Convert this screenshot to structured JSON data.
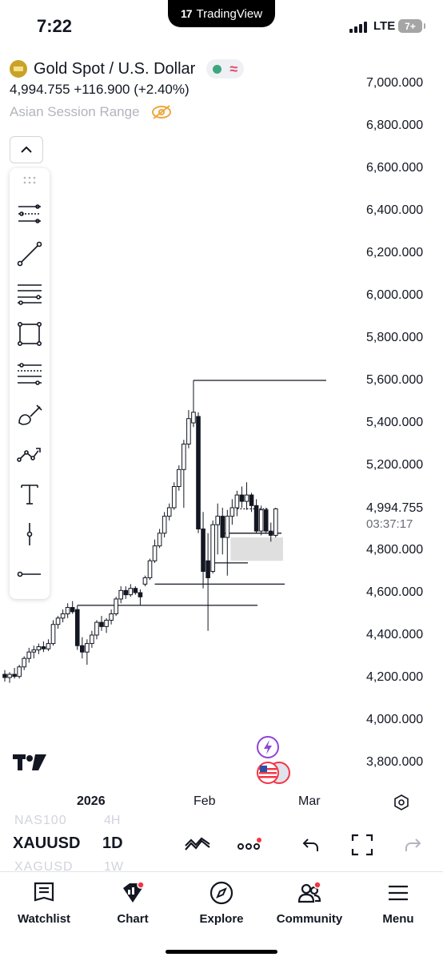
{
  "status_bar": {
    "time": "7:22",
    "app_pill": "TradingView",
    "network": "LTE",
    "battery": "7+"
  },
  "symbol": {
    "title": "Gold Spot / U.S. Dollar",
    "icon": "gold-bar-icon",
    "price": "4,994.755",
    "change": "+116.900 (+2.40%)",
    "status_dot_color": "#3ea67f",
    "status_wave_color": "#e0456b"
  },
  "indicator": {
    "name": "Asian Session Range",
    "visibility_icon": "eye-off-icon"
  },
  "toolbar": {
    "tools": [
      "cross-line-icon",
      "trend-line-icon",
      "parallel-channel-icon",
      "rectangle-icon",
      "fib-retracement-icon",
      "brush-icon",
      "path-icon",
      "text-icon",
      "vertical-line-icon",
      "horizontal-ray-icon"
    ]
  },
  "price_axis": {
    "labels": [
      "7,000.000",
      "6,800.000",
      "6,600.000",
      "6,400.000",
      "6,200.000",
      "6,000.000",
      "5,800.000",
      "5,600.000",
      "5,400.000",
      "5,200.000",
      "4,800.000",
      "4,600.000",
      "4,400.000",
      "4,200.000",
      "4,000.000",
      "3,800.000"
    ],
    "current_price": "4,994.755",
    "countdown": "03:37:17"
  },
  "time_axis": {
    "labels": [
      "2026",
      "Feb",
      "Mar"
    ]
  },
  "chart_data": {
    "type": "candlestick",
    "symbol": "XAUUSD",
    "interval": "1D",
    "ylim": [
      3700,
      7100
    ],
    "x_ticks": [
      "2026",
      "Feb",
      "Mar"
    ],
    "candles": [
      {
        "o": 4215,
        "h": 4235,
        "l": 4180,
        "c": 4200
      },
      {
        "o": 4200,
        "h": 4225,
        "l": 4175,
        "c": 4215
      },
      {
        "o": 4215,
        "h": 4245,
        "l": 4195,
        "c": 4205
      },
      {
        "o": 4205,
        "h": 4260,
        "l": 4195,
        "c": 4250
      },
      {
        "o": 4250,
        "h": 4300,
        "l": 4235,
        "c": 4290
      },
      {
        "o": 4290,
        "h": 4340,
        "l": 4270,
        "c": 4320
      },
      {
        "o": 4320,
        "h": 4350,
        "l": 4290,
        "c": 4330
      },
      {
        "o": 4330,
        "h": 4360,
        "l": 4310,
        "c": 4345
      },
      {
        "o": 4345,
        "h": 4370,
        "l": 4320,
        "c": 4335
      },
      {
        "o": 4335,
        "h": 4380,
        "l": 4325,
        "c": 4360
      },
      {
        "o": 4360,
        "h": 4470,
        "l": 4350,
        "c": 4450
      },
      {
        "o": 4450,
        "h": 4490,
        "l": 4430,
        "c": 4480
      },
      {
        "o": 4480,
        "h": 4520,
        "l": 4460,
        "c": 4500
      },
      {
        "o": 4500,
        "h": 4550,
        "l": 4480,
        "c": 4530
      },
      {
        "o": 4530,
        "h": 4560,
        "l": 4500,
        "c": 4510
      },
      {
        "o": 4520,
        "h": 4540,
        "l": 4330,
        "c": 4350
      },
      {
        "o": 4350,
        "h": 4390,
        "l": 4290,
        "c": 4320
      },
      {
        "o": 4320,
        "h": 4380,
        "l": 4260,
        "c": 4360
      },
      {
        "o": 4360,
        "h": 4420,
        "l": 4340,
        "c": 4400
      },
      {
        "o": 4400,
        "h": 4470,
        "l": 4380,
        "c": 4460
      },
      {
        "o": 4460,
        "h": 4490,
        "l": 4420,
        "c": 4440
      },
      {
        "o": 4440,
        "h": 4480,
        "l": 4410,
        "c": 4470
      },
      {
        "o": 4470,
        "h": 4520,
        "l": 4450,
        "c": 4500
      },
      {
        "o": 4500,
        "h": 4580,
        "l": 4490,
        "c": 4570
      },
      {
        "o": 4570,
        "h": 4630,
        "l": 4550,
        "c": 4610
      },
      {
        "o": 4610,
        "h": 4630,
        "l": 4570,
        "c": 4590
      },
      {
        "o": 4590,
        "h": 4640,
        "l": 4580,
        "c": 4620
      },
      {
        "o": 4620,
        "h": 4630,
        "l": 4590,
        "c": 4600
      },
      {
        "o": 4600,
        "h": 4615,
        "l": 4540,
        "c": 4580
      },
      {
        "o": 4640,
        "h": 4680,
        "l": 4630,
        "c": 4670
      },
      {
        "o": 4670,
        "h": 4760,
        "l": 4660,
        "c": 4750
      },
      {
        "o": 4750,
        "h": 4850,
        "l": 4740,
        "c": 4820
      },
      {
        "o": 4820,
        "h": 4900,
        "l": 4810,
        "c": 4880
      },
      {
        "o": 4880,
        "h": 4980,
        "l": 4860,
        "c": 4960
      },
      {
        "o": 4960,
        "h": 5020,
        "l": 4940,
        "c": 5000
      },
      {
        "o": 5000,
        "h": 5120,
        "l": 4990,
        "c": 5100
      },
      {
        "o": 5100,
        "h": 5200,
        "l": 5080,
        "c": 5180
      },
      {
        "o": 5180,
        "h": 5320,
        "l": 5000,
        "c": 5300
      },
      {
        "o": 5300,
        "h": 5460,
        "l": 5280,
        "c": 5420
      },
      {
        "o": 5400,
        "h": 5600,
        "l": 5380,
        "c": 5450
      },
      {
        "o": 5430,
        "h": 5450,
        "l": 4880,
        "c": 4900
      },
      {
        "o": 4900,
        "h": 4980,
        "l": 4620,
        "c": 4700
      },
      {
        "o": 4750,
        "h": 4880,
        "l": 4420,
        "c": 4670
      },
      {
        "o": 4700,
        "h": 4940,
        "l": 4690,
        "c": 4920
      },
      {
        "o": 4920,
        "h": 5020,
        "l": 4780,
        "c": 4960
      },
      {
        "o": 4960,
        "h": 5000,
        "l": 4780,
        "c": 4860
      },
      {
        "o": 4860,
        "h": 4990,
        "l": 4680,
        "c": 4960
      },
      {
        "o": 4960,
        "h": 5040,
        "l": 4920,
        "c": 5000
      },
      {
        "o": 5000,
        "h": 5080,
        "l": 4960,
        "c": 5060
      },
      {
        "o": 5060,
        "h": 5100,
        "l": 5000,
        "c": 5030
      },
      {
        "o": 5030,
        "h": 5120,
        "l": 4990,
        "c": 5060
      },
      {
        "o": 5060,
        "h": 5070,
        "l": 4980,
        "c": 5010
      },
      {
        "o": 5010,
        "h": 5040,
        "l": 4880,
        "c": 4890
      },
      {
        "o": 4890,
        "h": 5010,
        "l": 4870,
        "c": 4990
      },
      {
        "o": 4990,
        "h": 5000,
        "l": 4880,
        "c": 4890
      },
      {
        "o": 4890,
        "h": 4930,
        "l": 4840,
        "c": 4870
      },
      {
        "o": 4870,
        "h": 5000,
        "l": 4860,
        "c": 4994.755
      }
    ],
    "lines": [
      {
        "kind": "horizontal",
        "y": 5600
      },
      {
        "kind": "horizontal",
        "y": 4640
      },
      {
        "kind": "horizontal",
        "y": 4540
      },
      {
        "kind": "horizontal",
        "y": 4740
      },
      {
        "kind": "horizontal",
        "y": 4880
      },
      {
        "kind": "horizontal",
        "y": 4994.755,
        "style": "dotted"
      }
    ],
    "zones": [
      {
        "y1": 4750,
        "y2": 4860,
        "color": "#d9d9d9"
      }
    ]
  },
  "bottom_controls": {
    "symbol_prev": "NAS100",
    "symbol": "XAUUSD",
    "symbol_next": "XAGUSD",
    "interval_prev": "4H",
    "interval": "1D",
    "interval_next": "1W"
  },
  "tabbar": {
    "tabs": [
      {
        "label": "Watchlist",
        "icon": "watchlist-icon"
      },
      {
        "label": "Chart",
        "icon": "chart-icon"
      },
      {
        "label": "Explore",
        "icon": "compass-icon"
      },
      {
        "label": "Community",
        "icon": "community-icon"
      },
      {
        "label": "Menu",
        "icon": "menu-icon"
      }
    ],
    "notification_color": "#f23645"
  }
}
